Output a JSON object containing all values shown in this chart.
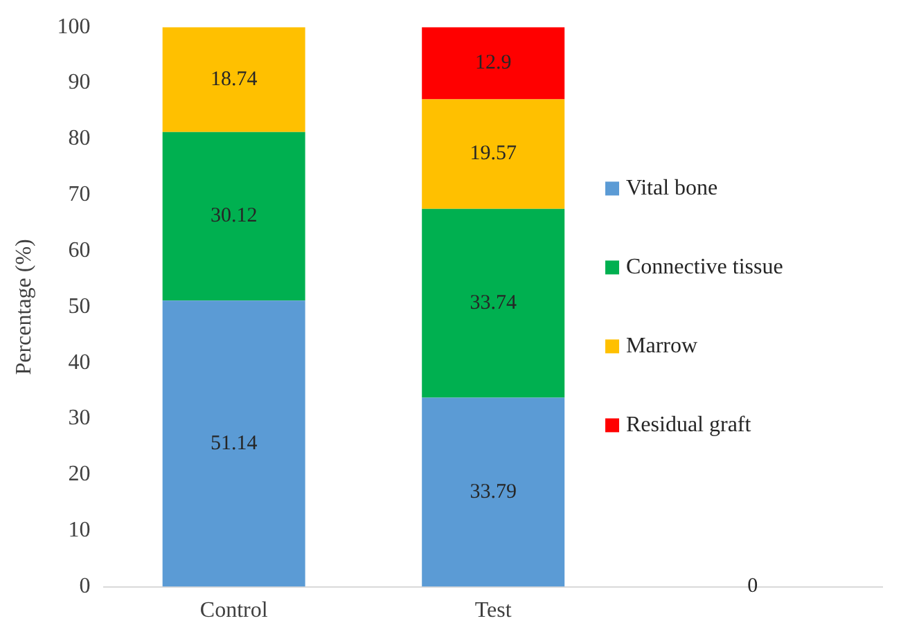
{
  "chart_data": {
    "type": "bar",
    "stacked": true,
    "ylabel": "Percentage (%)",
    "categories": [
      "Control",
      "Test",
      null
    ],
    "series": [
      {
        "name": "Vital bone",
        "color": "#5b9bd5",
        "values": [
          51.14,
          33.79,
          0
        ],
        "value_labels": [
          "51.14",
          "33.79",
          "0"
        ]
      },
      {
        "name": "Connective tissue",
        "color": "#00b050",
        "values": [
          30.12,
          33.74,
          0
        ],
        "value_labels": [
          "30.12",
          "33.74",
          null
        ]
      },
      {
        "name": "Marrow",
        "color": "#ffc000",
        "values": [
          18.74,
          19.57,
          0
        ],
        "value_labels": [
          "18.74",
          "19.57",
          null
        ]
      },
      {
        "name": "Residual graft",
        "color": "#ff0000",
        "values": [
          null,
          12.9,
          0
        ],
        "value_labels": [
          null,
          "12.9",
          null
        ]
      }
    ],
    "ylim": [
      0,
      100
    ],
    "yticks": [
      0,
      10,
      20,
      30,
      40,
      50,
      60,
      70,
      80,
      90,
      100
    ],
    "grid": false,
    "legend": "right"
  }
}
